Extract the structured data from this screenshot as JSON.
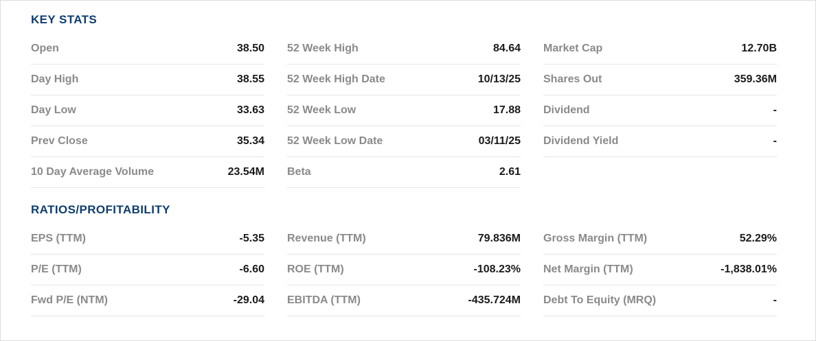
{
  "colors": {
    "heading": "#0e3d6e",
    "label": "#8a8a8a",
    "value": "#1a1a1a",
    "divider": "#e5e5e5",
    "panel_border": "#dcdcdc",
    "background": "#ffffff"
  },
  "sections": [
    {
      "title": "KEY STATS",
      "columns": [
        {
          "rows": [
            {
              "label": "Open",
              "value": "38.50"
            },
            {
              "label": "Day High",
              "value": "38.55"
            },
            {
              "label": "Day Low",
              "value": "33.63"
            },
            {
              "label": "Prev Close",
              "value": "35.34"
            },
            {
              "label": "10 Day Average Volume",
              "value": "23.54M"
            }
          ]
        },
        {
          "rows": [
            {
              "label": "52 Week High",
              "value": "84.64"
            },
            {
              "label": "52 Week High Date",
              "value": "10/13/25"
            },
            {
              "label": "52 Week Low",
              "value": "17.88"
            },
            {
              "label": "52 Week Low Date",
              "value": "03/11/25"
            },
            {
              "label": "Beta",
              "value": "2.61"
            }
          ]
        },
        {
          "rows": [
            {
              "label": "Market Cap",
              "value": "12.70B"
            },
            {
              "label": "Shares Out",
              "value": "359.36M"
            },
            {
              "label": "Dividend",
              "value": "-"
            },
            {
              "label": "Dividend Yield",
              "value": "-"
            }
          ]
        }
      ]
    },
    {
      "title": "RATIOS/PROFITABILITY",
      "columns": [
        {
          "rows": [
            {
              "label": "EPS (TTM)",
              "value": "-5.35"
            },
            {
              "label": "P/E (TTM)",
              "value": "-6.60"
            },
            {
              "label": "Fwd P/E (NTM)",
              "value": "-29.04"
            }
          ]
        },
        {
          "rows": [
            {
              "label": "Revenue (TTM)",
              "value": "79.836M"
            },
            {
              "label": "ROE (TTM)",
              "value": "-108.23%"
            },
            {
              "label": "EBITDA (TTM)",
              "value": "-435.724M"
            }
          ]
        },
        {
          "rows": [
            {
              "label": "Gross Margin (TTM)",
              "value": "52.29%"
            },
            {
              "label": "Net Margin (TTM)",
              "value": "-1,838.01%"
            },
            {
              "label": "Debt To Equity (MRQ)",
              "value": "-"
            }
          ]
        }
      ]
    }
  ]
}
